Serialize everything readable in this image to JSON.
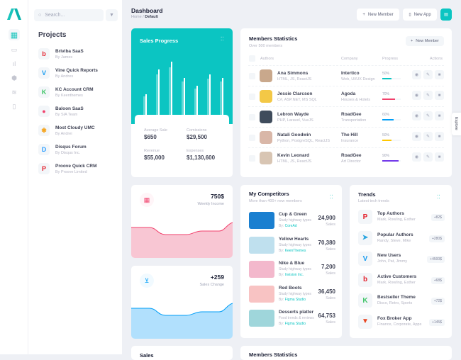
{
  "colors": {
    "accent": "#0bc5c2",
    "danger": "#f1416c",
    "primary": "#009ef7",
    "warning": "#ffc700",
    "info": "#7239ea"
  },
  "search": {
    "placeholder": "Search..."
  },
  "projects": {
    "title": "Projects",
    "items": [
      {
        "name": "Briviba SaaS",
        "by": "By James",
        "icon": "b",
        "color": "#e4212d"
      },
      {
        "name": "Vine Quick Reports",
        "by": "By Andres",
        "icon": "V",
        "color": "#1a9cf0"
      },
      {
        "name": "KC Account CRM",
        "by": "By Keenthemes",
        "icon": "K",
        "color": "#41c568"
      },
      {
        "name": "Baloon SaaS",
        "by": "By SIA Team",
        "icon": "●",
        "color": "#f1416c"
      },
      {
        "name": "Most Cloudy UMC",
        "by": "By Andrei",
        "icon": "✱",
        "color": "#f5a623"
      },
      {
        "name": "Disqus Forum",
        "by": "By Disqus Inc.",
        "icon": "D",
        "color": "#2e9fff"
      },
      {
        "name": "Proove Quick CRM",
        "by": "By Proove Limited",
        "icon": "P",
        "color": "#e4212d"
      }
    ]
  },
  "header": {
    "title": "Dashboard",
    "crumb_home": "Home",
    "crumb_sep": "/",
    "crumb_current": "Default",
    "new_member": "New Member",
    "new_app": "New App"
  },
  "sales": {
    "title": "Sales Progress",
    "bars": [
      26,
      58,
      68,
      47,
      37,
      52,
      47
    ],
    "stats": [
      {
        "label": "Average Sale",
        "value": "$650"
      },
      {
        "label": "Comissions",
        "value": "$29,500"
      },
      {
        "label": "Revenue",
        "value": "$55,000"
      },
      {
        "label": "Expenses",
        "value": "$1,130,600"
      }
    ]
  },
  "members": {
    "title": "Members Statistics",
    "subtitle": "Over 500 members",
    "button": "New Member",
    "headers": {
      "authors": "Authors",
      "company": "Company",
      "progress": "Progress",
      "actions": "Actions"
    },
    "rows": [
      {
        "name": "Ana Simmons",
        "skills": "HTML, JS, ReactJS",
        "company": "Intertico",
        "sector": "Web, UI/UX Design",
        "progress": "50%",
        "pct": 50,
        "color": "#0bc5c2",
        "avatar": "#c9a88c"
      },
      {
        "name": "Jessie Clarcson",
        "skills": "C#, ASP.NET, MS SQL",
        "company": "Agoda",
        "sector": "Houses & Hotels",
        "progress": "70%",
        "pct": 70,
        "color": "#f1416c",
        "avatar": "#f3c846"
      },
      {
        "name": "Lebron Wayde",
        "skills": "PHP, Laravel, VueJS",
        "company": "RoadGee",
        "sector": "Transportation",
        "progress": "60%",
        "pct": 60,
        "color": "#009ef7",
        "avatar": "#3f4c5c"
      },
      {
        "name": "Natali Goodwin",
        "skills": "Python, PostgreSQL, ReactJS",
        "company": "The Hill",
        "sector": "Insurance",
        "progress": "50%",
        "pct": 50,
        "color": "#ffc700",
        "avatar": "#d9b7a8"
      },
      {
        "name": "Kevin Leonard",
        "skills": "HTML, JS, ReactJS",
        "company": "RoadGee",
        "sector": "Art Director",
        "progress": "90%",
        "pct": 90,
        "color": "#7239ea",
        "avatar": "#d8c5b3"
      }
    ]
  },
  "explore": "Explore",
  "weekly": {
    "value": "750$",
    "label": "Weekly Income"
  },
  "change": {
    "value": "+259",
    "label": "Sales Change"
  },
  "competitors": {
    "title": "My Competitors",
    "subtitle": "More than 400+ new members",
    "by_prefix": "By:",
    "sales_label": "Sales",
    "items": [
      {
        "name": "Cup & Green",
        "desc": "Study highway types",
        "by": "CoreAd",
        "value": "24,900",
        "color": "#1a7fd0"
      },
      {
        "name": "Yellow Hearts",
        "desc": "Study highway types",
        "by": "KeenThemes",
        "value": "70,380",
        "color": "#bfe0ee"
      },
      {
        "name": "Nike & Blue",
        "desc": "Study highway types",
        "by": "Invision Inc.",
        "value": "7,200",
        "color": "#f3b8cc"
      },
      {
        "name": "Red Boots",
        "desc": "Study highway types",
        "by": "Figma Studio",
        "value": "36,450",
        "color": "#f8c3c3"
      },
      {
        "name": "Desserts platter",
        "desc": "Food trends & reviews",
        "by": "Figma Studio",
        "value": "64,753",
        "color": "#9fd6db"
      }
    ]
  },
  "trends": {
    "title": "Trends",
    "subtitle": "Latest tech trends",
    "items": [
      {
        "name": "Top Authors",
        "people": "Mark, Rowling, Esther",
        "badge": "+82$",
        "icon": "P",
        "color": "#e4212d"
      },
      {
        "name": "Popular Authors",
        "people": "Randy, Steve, Mike",
        "badge": "+280$",
        "icon": "➤",
        "color": "#2aa5e0"
      },
      {
        "name": "New Users",
        "people": "John, Pat, Jimmy",
        "badge": "+4500$",
        "icon": "V",
        "color": "#1a9cf0"
      },
      {
        "name": "Active Customers",
        "people": "Mark, Rowling, Esther",
        "badge": "+68$",
        "icon": "b",
        "color": "#e4212d"
      },
      {
        "name": "Bestseller Theme",
        "people": "Disco, Retro, Sports",
        "badge": "+72$",
        "icon": "K",
        "color": "#41c568"
      },
      {
        "name": "Fox Broker App",
        "people": "Finance, Corporate, Apps",
        "badge": "+145$",
        "icon": "▼",
        "color": "#e8441f"
      }
    ]
  },
  "bottom": {
    "left_title": "Sales",
    "right_title": "Members Statistics"
  }
}
